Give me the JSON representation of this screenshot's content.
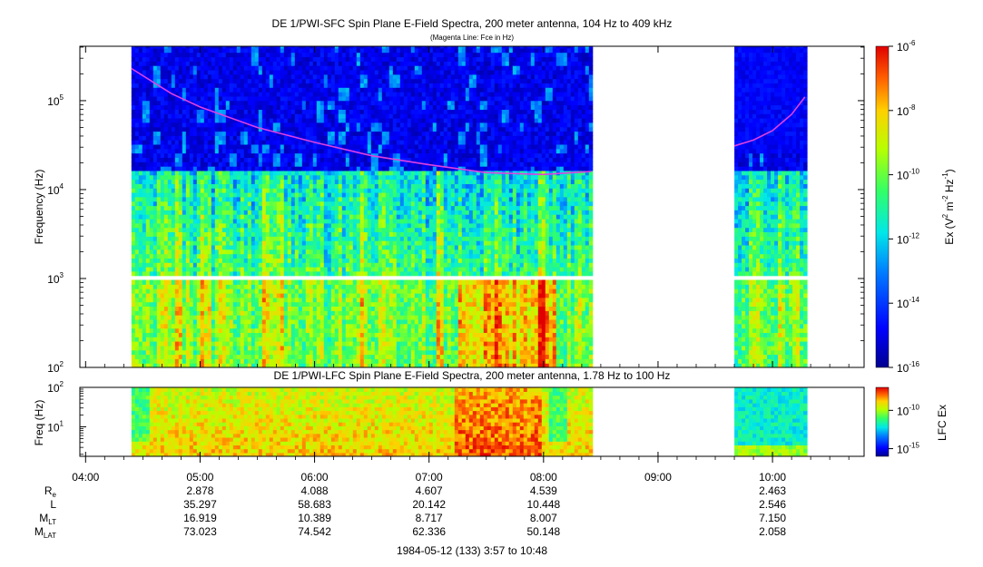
{
  "chart_data": [
    {
      "type": "heatmap",
      "title": "DE 1/PWI-SFC  Spin Plane E-Field Spectra, 200 meter antenna, 104 Hz to 409 kHz",
      "subtitle": "(Magenta Line: Fce in Hz)",
      "ylabel": "Frequency (Hz)",
      "yscale": "log",
      "ylim": [
        100,
        409000
      ],
      "ytick_labels": [
        {
          "base": "10",
          "exp": "2"
        },
        {
          "base": "10",
          "exp": "3"
        },
        {
          "base": "10",
          "exp": "4"
        },
        {
          "base": "10",
          "exp": "5"
        }
      ],
      "colorbar": {
        "label_parts": [
          "Ex (V",
          "2",
          " m",
          "-2",
          " Hz",
          "-1",
          ")"
        ],
        "scale": "log",
        "range": [
          1e-16,
          1e-06
        ],
        "tick_labels": [
          {
            "base": "10",
            "exp": "-6"
          },
          {
            "base": "10",
            "exp": "-8"
          },
          {
            "base": "10",
            "exp": "-10"
          },
          {
            "base": "10",
            "exp": "-12"
          },
          {
            "base": "10",
            "exp": "-14"
          },
          {
            "base": "10",
            "exp": "-16"
          }
        ]
      },
      "data_intervals_utc": [
        [
          "04:24",
          "08:25"
        ],
        [
          "09:40",
          "10:18"
        ]
      ],
      "low_band_gap_hz": [
        900,
        1050
      ],
      "fce_line": {
        "color": "#e040e0",
        "segments": [
          [
            [
              "04:24",
              230000
            ],
            [
              "04:45",
              120000
            ],
            [
              "05:00",
              85000
            ],
            [
              "05:30",
              50000
            ],
            [
              "06:00",
              34000
            ],
            [
              "06:30",
              24000
            ],
            [
              "07:00",
              19000
            ],
            [
              "07:30",
              15500
            ],
            [
              "08:00",
              14800
            ],
            [
              "08:25",
              16000
            ]
          ],
          [
            [
              "09:40",
              31000
            ],
            [
              "09:50",
              36000
            ],
            [
              "10:00",
              46000
            ],
            [
              "10:10",
              70000
            ],
            [
              "10:17",
              110000
            ]
          ]
        ]
      }
    },
    {
      "type": "heatmap",
      "title": "DE 1/PWI-LFC  Spin Plane E-Field Spectra, 200 meter antenna, 1.78 Hz to 100 Hz",
      "ylabel": "Freq (Hz)",
      "yscale": "log",
      "ylim": [
        1.78,
        100
      ],
      "ytick_labels": [
        {
          "base": "10",
          "exp": "1"
        },
        {
          "base": "10",
          "exp": "2"
        }
      ],
      "colorbar": {
        "label": "LFC Ex",
        "scale": "log",
        "range": [
          1e-16,
          1e-07
        ],
        "tick_labels": [
          {
            "base": "10",
            "exp": "-10"
          },
          {
            "base": "10",
            "exp": "-15"
          }
        ]
      },
      "data_intervals_utc": [
        [
          "04:24",
          "08:25"
        ],
        [
          "09:40",
          "10:18"
        ]
      ]
    }
  ],
  "time_axis": {
    "ticks": [
      "04:00",
      "05:00",
      "06:00",
      "07:00",
      "08:00",
      "09:00",
      "10:00"
    ],
    "range_utc": [
      "03:57",
      "10:48"
    ]
  },
  "ephemeris": {
    "rows": [
      {
        "name": "R",
        "sub": "e",
        "values": [
          "2.878",
          "4.088",
          "4.607",
          "4.539",
          "",
          "2.463"
        ]
      },
      {
        "name": "L",
        "sub": "",
        "values": [
          "35.297",
          "58.683",
          "20.142",
          "10.448",
          "",
          "2.546"
        ]
      },
      {
        "name": "M",
        "sub": "LT",
        "values": [
          "16.919",
          "10.389",
          "8.717",
          "8.007",
          "",
          "7.150"
        ]
      },
      {
        "name": "M",
        "sub": "LAT",
        "values": [
          "73.023",
          "74.542",
          "62.336",
          "50.148",
          "",
          "2.058"
        ]
      }
    ],
    "at_ticks": [
      "05:00",
      "06:00",
      "07:00",
      "08:00",
      "09:00",
      "10:00"
    ]
  },
  "footer": "1984-05-12 (133) 3:57 to 10:48"
}
